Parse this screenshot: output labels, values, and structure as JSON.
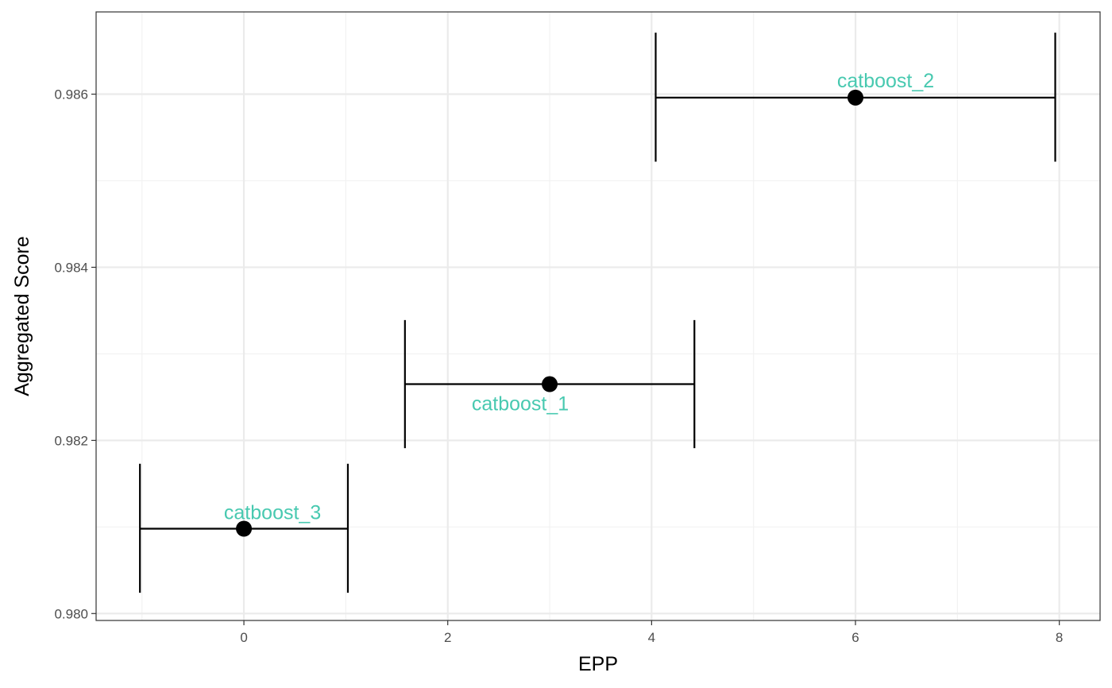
{
  "chart_data": {
    "type": "scatter",
    "title": "",
    "xlabel": "EPP",
    "ylabel": "Aggregated Score",
    "xlim": [
      -1.45,
      8.4
    ],
    "ylim": [
      0.97992,
      0.98695
    ],
    "x_ticks": [
      0,
      2,
      4,
      6,
      8
    ],
    "x_tick_labels": [
      "0",
      "2",
      "4",
      "6",
      "8"
    ],
    "y_ticks": [
      0.98,
      0.982,
      0.984,
      0.986
    ],
    "y_tick_labels": [
      "0.980",
      "0.982",
      "0.984",
      "0.986"
    ],
    "grid": true,
    "label_color": "#48C9B0",
    "points": [
      {
        "label": "catboost_1",
        "x": 3,
        "y": 0.98265,
        "x_low": 1.58,
        "x_high": 4.42,
        "y_low": 0.98191,
        "y_high": 0.98339
      },
      {
        "label": "catboost_2",
        "x": 6,
        "y": 0.98596,
        "x_low": 4.04,
        "x_high": 7.96,
        "y_low": 0.98522,
        "y_high": 0.98671
      },
      {
        "label": "catboost_3",
        "x": 0,
        "y": 0.98098,
        "x_low": -1.02,
        "x_high": 1.02,
        "y_low": 0.98024,
        "y_high": 0.98173
      }
    ]
  }
}
